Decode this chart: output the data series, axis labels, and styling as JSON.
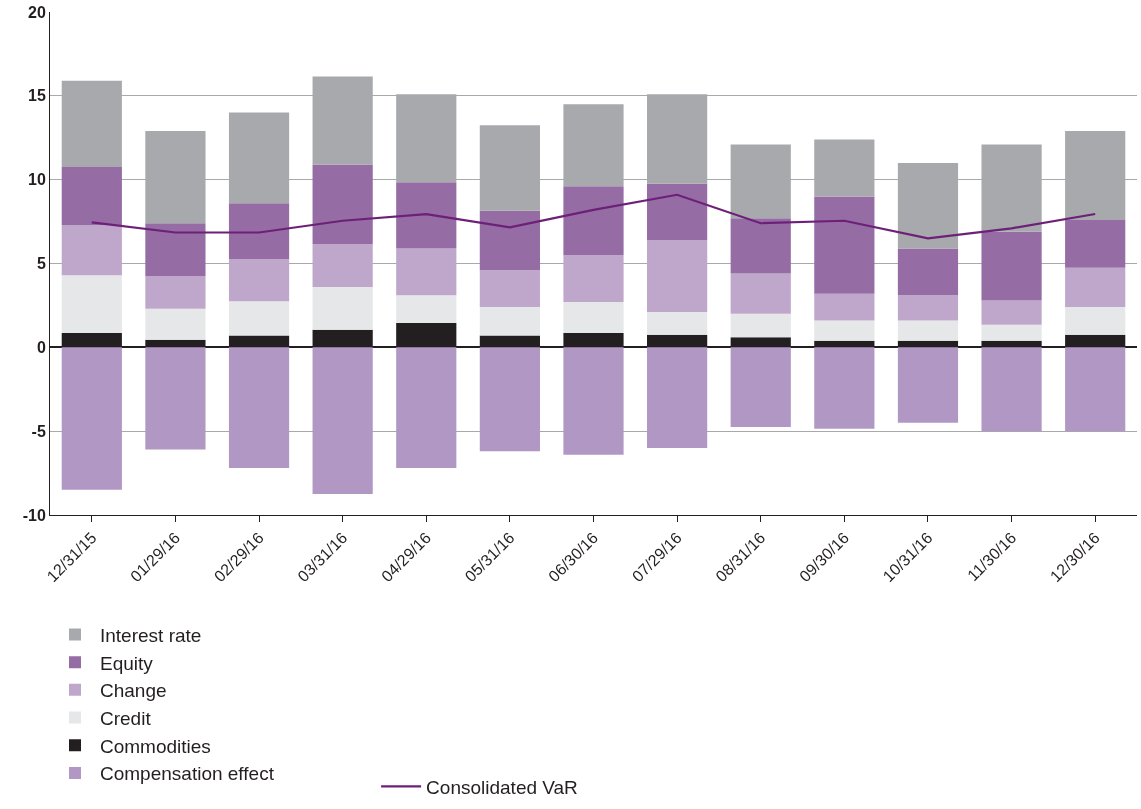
{
  "chart_data": {
    "type": "bar",
    "stacked": true,
    "categories": [
      "12/31/15",
      "01/29/16",
      "02/29/16",
      "03/31/16",
      "04/29/16",
      "05/31/16",
      "06/30/16",
      "07/29/16",
      "08/31/16",
      "09/30/16",
      "10/31/16",
      "11/30/16",
      "12/30/16"
    ],
    "series": [
      {
        "name": "Commodities",
        "color": "#231f20",
        "values": [
          0.85,
          0.45,
          0.7,
          1.05,
          1.45,
          0.7,
          0.85,
          0.75,
          0.6,
          0.4,
          0.4,
          0.4,
          0.75
        ]
      },
      {
        "name": "Credit",
        "color": "#e6e7e8",
        "values": [
          3.45,
          1.85,
          2.05,
          2.55,
          1.65,
          1.7,
          1.85,
          1.35,
          1.4,
          1.2,
          1.2,
          0.95,
          1.65
        ]
      },
      {
        "name": "Change",
        "color": "#bfa7cc",
        "values": [
          3.0,
          1.95,
          2.5,
          2.55,
          2.8,
          2.2,
          2.8,
          4.3,
          2.4,
          1.6,
          1.5,
          1.45,
          2.35
        ]
      },
      {
        "name": "Equity",
        "color": "#956ca4",
        "values": [
          3.45,
          3.15,
          3.35,
          4.75,
          3.95,
          3.55,
          4.1,
          3.35,
          3.3,
          5.8,
          2.8,
          4.1,
          2.85
        ]
      },
      {
        "name": "Interest rate",
        "color": "#a7a9ac",
        "values": [
          5.15,
          5.5,
          5.4,
          5.25,
          5.25,
          5.1,
          4.9,
          5.35,
          4.4,
          3.4,
          5.1,
          5.2,
          5.3
        ]
      },
      {
        "name": "Compensation effect",
        "color": "#b197c4",
        "values": [
          -8.5,
          -6.1,
          -7.2,
          -8.75,
          -7.2,
          -6.2,
          -6.4,
          -6.0,
          -4.75,
          -4.85,
          -4.5,
          -5.0,
          -5.0
        ]
      },
      {
        "name": "Consolidated VaR",
        "type": "line",
        "color": "#6d2077",
        "values": [
          7.45,
          6.85,
          6.85,
          7.55,
          7.95,
          7.15,
          8.2,
          9.1,
          7.4,
          7.55,
          6.5,
          7.1,
          7.95
        ]
      }
    ],
    "ylim": [
      -10,
      20
    ],
    "yticks": [
      -10,
      -5,
      0,
      5,
      10,
      15,
      20
    ],
    "grid": "y",
    "legend": "bottom",
    "marker": "none",
    "line_style": "solid"
  }
}
